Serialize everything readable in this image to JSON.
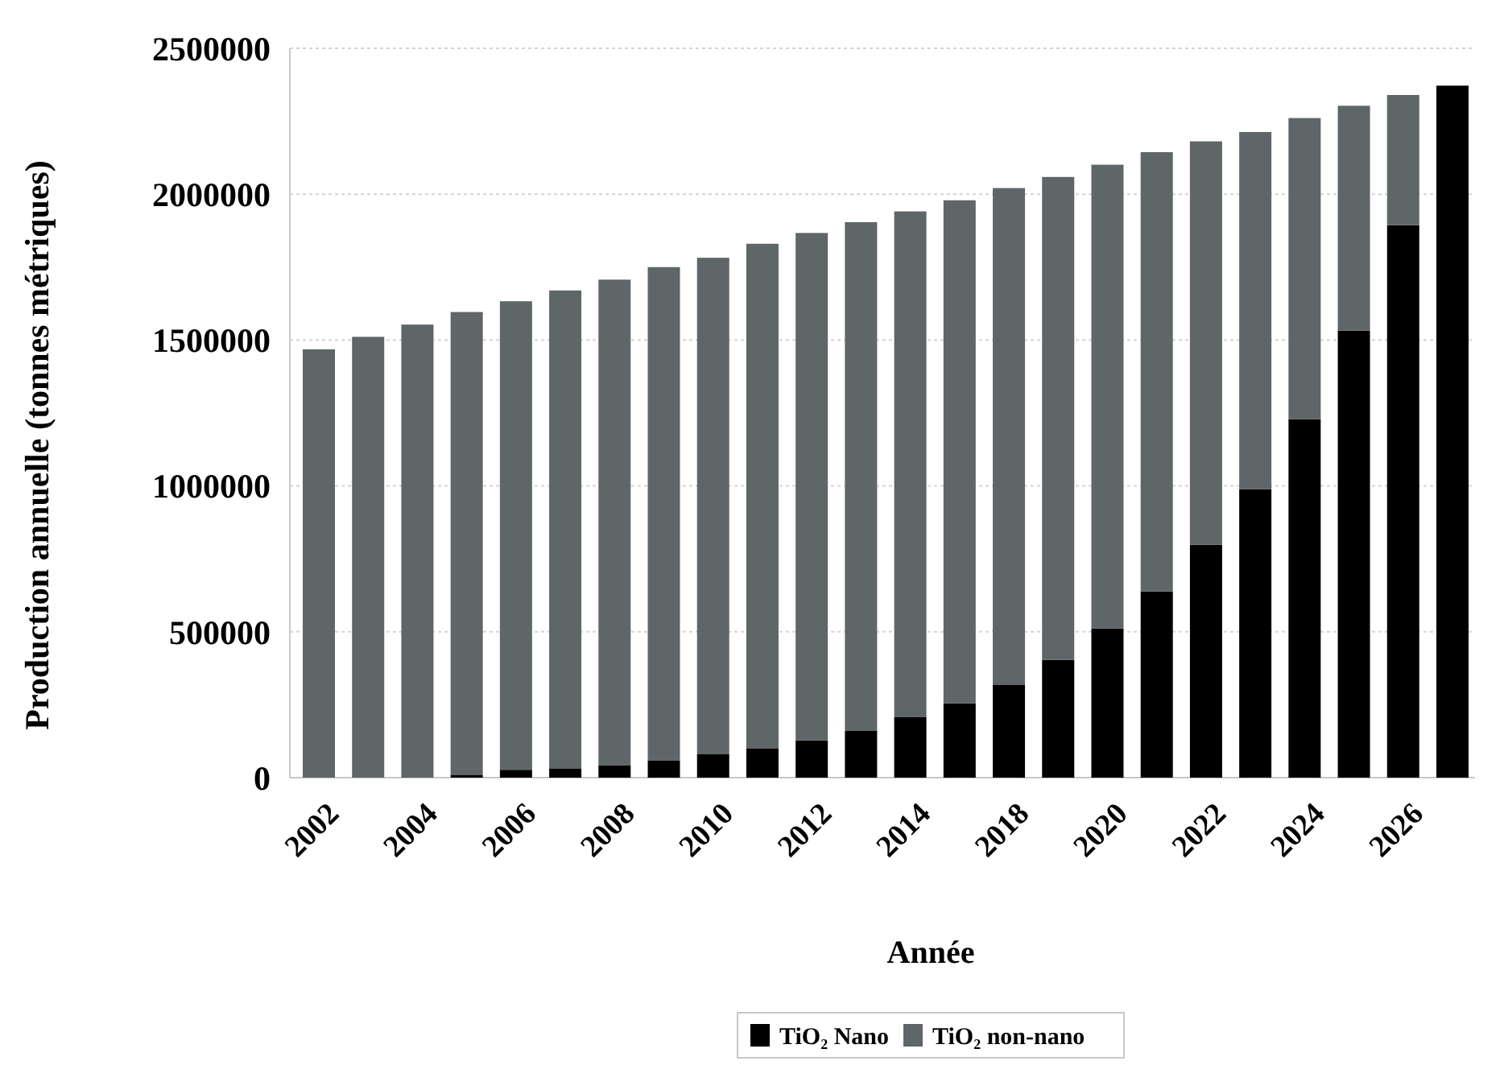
{
  "chart_data": {
    "type": "bar",
    "stacked": true,
    "xlabel": "Année",
    "ylabel": "Production annuelle (tonnes métriques)",
    "categories": [
      "2002",
      null,
      "2004",
      null,
      "2006",
      null,
      "2008",
      null,
      "2010",
      null,
      "2012",
      null,
      "2014",
      null,
      "2018",
      null,
      "2020",
      null,
      "2022",
      null,
      "2024",
      null,
      "2026",
      null
    ],
    "series": [
      {
        "name": "TiO₂ Nano",
        "color": "#000000",
        "values": [
          0,
          0,
          0,
          10000,
          27000,
          32000,
          43000,
          58000,
          80000,
          101000,
          128000,
          160000,
          207000,
          255000,
          319000,
          404000,
          511000,
          638000,
          798000,
          989000,
          1229000,
          1532000,
          1894000,
          2372000
        ]
      },
      {
        "name": "TiO₂ non-nano",
        "color": "#5f6668",
        "values": [
          1468000,
          1511000,
          1553000,
          1586000,
          1606000,
          1638000,
          1664000,
          1692000,
          1702000,
          1729000,
          1739000,
          1744000,
          1734000,
          1724000,
          1702000,
          1655000,
          1590000,
          1506000,
          1383000,
          1224000,
          1032000,
          771000,
          446000,
          0
        ]
      }
    ],
    "ylim": [
      0,
      2500000
    ],
    "yticks": [
      0,
      500000,
      1000000,
      1500000,
      2000000,
      2500000
    ],
    "grid": "y",
    "legend": "bottom"
  }
}
